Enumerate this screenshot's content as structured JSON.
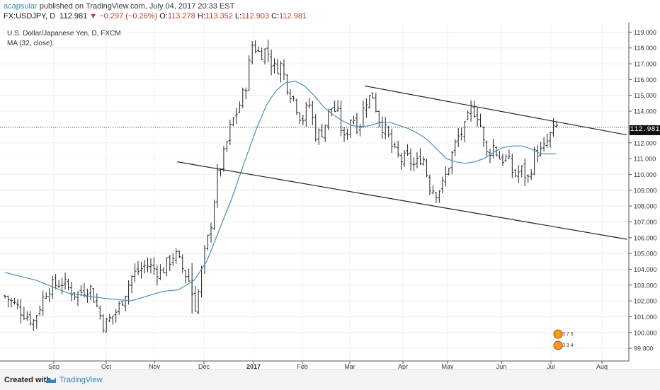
{
  "header": {
    "publisher": "acapsular",
    "published_text": " published on TradingView.com, July 04, 2017 20:33 EST",
    "symbol": "FX:USDJPY, D",
    "last": "112.981",
    "change": "−0.297 (−0.26%)",
    "open_label": "O:",
    "open": "113.278",
    "high_label": "H:",
    "high": "113.352",
    "low_label": "L:",
    "low": "112.903",
    "close_label": "C:",
    "close": "112.981"
  },
  "legend": {
    "series_title": "U.S. Dollar/Japanese Yen, D, FXCM",
    "indicator": "MA (32, close)"
  },
  "footer": {
    "created_with": "Created with",
    "brand": "TradingView"
  },
  "chart_data": {
    "type": "ohlc",
    "ylim": [
      98.2,
      119.6
    ],
    "y_ticks": [
      "99.000",
      "100.000",
      "101.000",
      "102.000",
      "103.000",
      "104.000",
      "105.000",
      "106.000",
      "107.000",
      "108.000",
      "109.000",
      "110.000",
      "111.000",
      "112.000",
      "113.000",
      "114.000",
      "115.000",
      "116.000",
      "117.000",
      "118.000",
      "119.000"
    ],
    "x_ticks": [
      "Sep",
      "Oct",
      "Nov",
      "Dec",
      "2017",
      "Feb",
      "Mar",
      "Apr",
      "May",
      "Jun",
      "Jul",
      "Aug"
    ],
    "current_price": "112.981",
    "colors": {
      "bars": "#222222",
      "ma": "#4a90b8",
      "trend": "#222222",
      "price_line": "#444444"
    },
    "ma_key_points": [
      [
        0,
        103.8
      ],
      [
        10,
        103.3
      ],
      [
        20,
        102.5
      ],
      [
        30,
        102.2
      ],
      [
        40,
        102.0
      ],
      [
        50,
        102.6
      ],
      [
        55,
        102.7
      ],
      [
        60,
        103.3
      ],
      [
        64,
        104.5
      ],
      [
        68,
        106.5
      ],
      [
        72,
        108.5
      ],
      [
        76,
        110.8
      ],
      [
        80,
        113.0
      ],
      [
        83,
        114.4
      ],
      [
        86,
        115.3
      ],
      [
        89,
        115.8
      ],
      [
        92,
        115.9
      ],
      [
        95,
        115.6
      ],
      [
        98,
        115.0
      ],
      [
        101,
        114.3
      ],
      [
        104,
        113.8
      ],
      [
        107,
        113.4
      ],
      [
        110,
        113.1
      ],
      [
        113,
        113.0
      ],
      [
        116,
        113.1
      ],
      [
        119,
        113.3
      ],
      [
        122,
        113.3
      ],
      [
        125,
        113.1
      ],
      [
        128,
        112.9
      ],
      [
        131,
        112.6
      ],
      [
        134,
        112.2
      ],
      [
        137,
        111.6
      ],
      [
        140,
        111.0
      ],
      [
        143,
        110.8
      ],
      [
        146,
        110.7
      ],
      [
        149,
        110.8
      ],
      [
        152,
        111.0
      ],
      [
        155,
        111.4
      ],
      [
        158,
        111.7
      ],
      [
        161,
        111.8
      ],
      [
        164,
        111.8
      ],
      [
        167,
        111.6
      ],
      [
        170,
        111.3
      ],
      [
        175,
        111.3
      ]
    ],
    "trendlines": [
      {
        "name": "upper-channel",
        "points": [
          [
            103,
            115.6
          ],
          [
            885,
            112.5
          ]
        ]
      },
      {
        "name": "lower-channel",
        "points": [
          [
            50,
            110.8
          ],
          [
            885,
            105.9
          ]
        ]
      }
    ],
    "close_key_points": [
      [
        0,
        102.3
      ],
      [
        4,
        101.5
      ],
      [
        8,
        100.7
      ],
      [
        12,
        102.8
      ],
      [
        16,
        103.2
      ],
      [
        20,
        102.4
      ],
      [
        24,
        102.9
      ],
      [
        28,
        100.4
      ],
      [
        32,
        101.5
      ],
      [
        36,
        103.6
      ],
      [
        40,
        104.3
      ],
      [
        44,
        103.8
      ],
      [
        48,
        105.0
      ],
      [
        52,
        103.3
      ],
      [
        54,
        101.5
      ],
      [
        56,
        104.5
      ],
      [
        58,
        106.5
      ],
      [
        60,
        109.8
      ],
      [
        62,
        111.3
      ],
      [
        64,
        113.2
      ],
      [
        66,
        114.2
      ],
      [
        68,
        115.5
      ],
      [
        70,
        118.3
      ],
      [
        72,
        117.6
      ],
      [
        74,
        117.9
      ],
      [
        76,
        116.7
      ],
      [
        78,
        116.9
      ],
      [
        80,
        115.5
      ],
      [
        82,
        114.6
      ],
      [
        84,
        113.4
      ],
      [
        86,
        114.5
      ],
      [
        88,
        112.4
      ],
      [
        90,
        112.8
      ],
      [
        92,
        114.3
      ],
      [
        94,
        113.9
      ],
      [
        96,
        112.1
      ],
      [
        98,
        113.8
      ],
      [
        100,
        112.9
      ],
      [
        102,
        114.7
      ],
      [
        104,
        115.0
      ],
      [
        106,
        113.3
      ],
      [
        108,
        112.6
      ],
      [
        110,
        111.4
      ],
      [
        112,
        110.9
      ],
      [
        114,
        111.0
      ],
      [
        116,
        110.5
      ],
      [
        118,
        111.3
      ],
      [
        120,
        109.3
      ],
      [
        122,
        108.9
      ],
      [
        124,
        109.4
      ],
      [
        126,
        111.0
      ],
      [
        128,
        112.3
      ],
      [
        130,
        112.9
      ],
      [
        132,
        114.2
      ],
      [
        134,
        113.7
      ],
      [
        136,
        111.2
      ],
      [
        138,
        111.8
      ],
      [
        140,
        111.0
      ],
      [
        142,
        111.0
      ],
      [
        144,
        109.9
      ],
      [
        146,
        110.3
      ],
      [
        148,
        109.7
      ],
      [
        150,
        111.5
      ],
      [
        152,
        111.4
      ],
      [
        154,
        112.4
      ],
      [
        156,
        113.0
      ]
    ]
  }
}
